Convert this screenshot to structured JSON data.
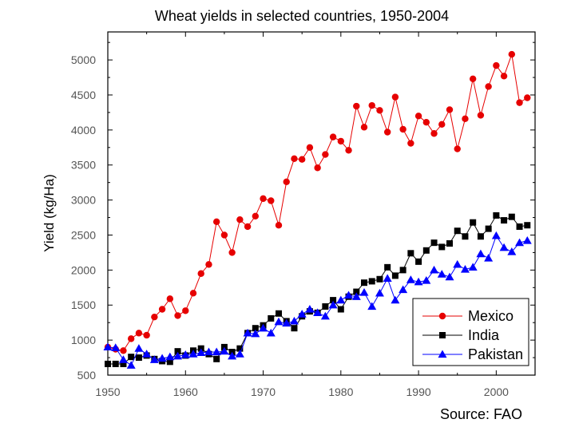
{
  "chart_data": {
    "type": "line",
    "title": "Wheat yields in selected countries, 1950-2004",
    "xlabel": "",
    "ylabel": "Yield (kg/Ha)",
    "xlim": [
      1950,
      2005
    ],
    "ylim": [
      500,
      5400
    ],
    "xticks": [
      1950,
      1960,
      1970,
      1980,
      1990,
      2000
    ],
    "yticks": [
      500,
      1000,
      1500,
      2000,
      2500,
      3000,
      3500,
      4000,
      4500,
      5000
    ],
    "xtick_labels": [
      "1950",
      "1960",
      "1970",
      "1980",
      "1990",
      "2000"
    ],
    "ytick_labels": [
      "500",
      "1000",
      "1500",
      "2000",
      "2500",
      "3000",
      "3500",
      "4000",
      "4500",
      "5000"
    ],
    "x": [
      1950,
      1951,
      1952,
      1953,
      1954,
      1955,
      1956,
      1957,
      1958,
      1959,
      1960,
      1961,
      1962,
      1963,
      1964,
      1965,
      1966,
      1967,
      1968,
      1969,
      1970,
      1971,
      1972,
      1973,
      1974,
      1975,
      1976,
      1977,
      1978,
      1979,
      1980,
      1981,
      1982,
      1983,
      1984,
      1985,
      1986,
      1987,
      1988,
      1989,
      1990,
      1991,
      1992,
      1993,
      1994,
      1995,
      1996,
      1997,
      1998,
      1999,
      2000,
      2001,
      2002,
      2003,
      2004
    ],
    "series": [
      {
        "name": "Mexico",
        "color": "#e60000",
        "marker": "circle",
        "values": [
          900,
          870,
          850,
          1020,
          1100,
          1070,
          1330,
          1440,
          1590,
          1350,
          1420,
          1670,
          1950,
          2080,
          2690,
          2500,
          2250,
          2720,
          2620,
          2770,
          3020,
          2990,
          2640,
          3260,
          3590,
          3580,
          3750,
          3460,
          3650,
          3900,
          3840,
          3710,
          4340,
          4040,
          4350,
          4280,
          3970,
          4470,
          4010,
          3810,
          4200,
          4110,
          3950,
          4080,
          4290,
          3730,
          4160,
          4730,
          4210,
          4620,
          4920,
          4770,
          5080,
          4390,
          4460
        ]
      },
      {
        "name": "India",
        "color": "#000000",
        "marker": "square",
        "values": [
          660,
          660,
          660,
          760,
          750,
          780,
          730,
          700,
          690,
          840,
          780,
          850,
          880,
          800,
          730,
          900,
          830,
          880,
          1100,
          1170,
          1210,
          1310,
          1380,
          1270,
          1170,
          1340,
          1410,
          1390,
          1480,
          1570,
          1440,
          1620,
          1690,
          1820,
          1840,
          1870,
          2040,
          1920,
          2000,
          2240,
          2120,
          2280,
          2390,
          2330,
          2380,
          2560,
          2480,
          2680,
          2480,
          2590,
          2780,
          2710,
          2760,
          2620,
          2640
        ]
      },
      {
        "name": "Pakistan",
        "color": "#0000ff",
        "marker": "triangle",
        "values": [
          900,
          890,
          720,
          640,
          880,
          800,
          720,
          740,
          760,
          770,
          790,
          800,
          820,
          830,
          830,
          840,
          770,
          800,
          1100,
          1090,
          1170,
          1100,
          1260,
          1240,
          1270,
          1370,
          1440,
          1390,
          1340,
          1500,
          1570,
          1640,
          1620,
          1680,
          1480,
          1670,
          1880,
          1570,
          1720,
          1860,
          1830,
          1850,
          2000,
          1940,
          1900,
          2080,
          2010,
          2040,
          2230,
          2170,
          2490,
          2320,
          2260,
          2390,
          2420
        ]
      }
    ],
    "legend_position": "lower-right",
    "annotation": "Source:  FAO"
  }
}
